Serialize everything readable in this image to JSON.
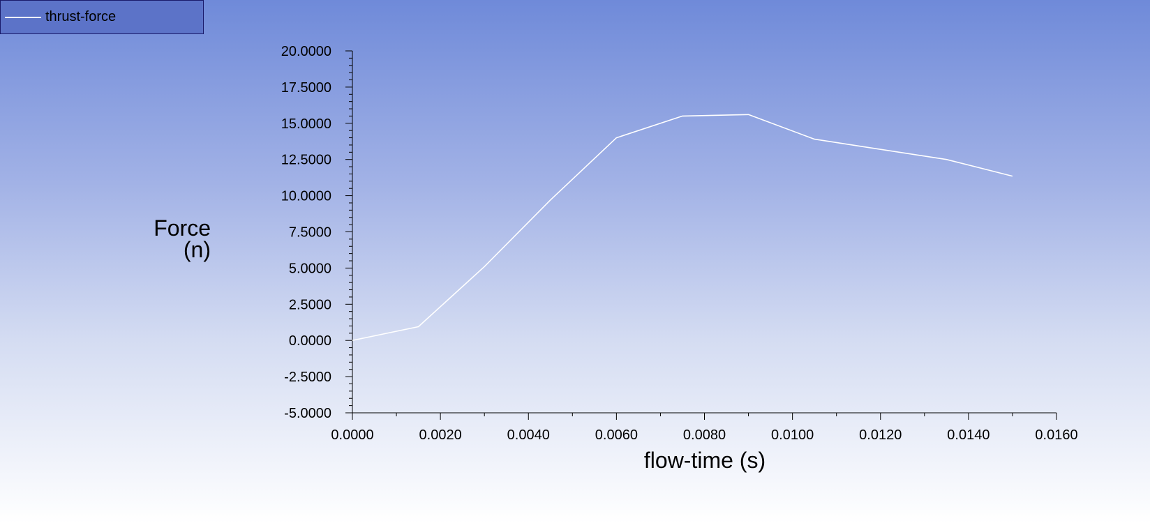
{
  "legend": {
    "label": "thrust-force",
    "swatch_color": "#ffffff"
  },
  "axes": {
    "ylabel_line1": "Force",
    "ylabel_line2": "(n)",
    "xlabel": "flow-time (s)"
  },
  "chart_data": {
    "type": "line",
    "title": "",
    "xlabel": "flow-time (s)",
    "ylabel": "Force (n)",
    "xlim": [
      0,
      0.016
    ],
    "ylim": [
      -5,
      20
    ],
    "xticks": [
      "0.0000",
      "0.0020",
      "0.0040",
      "0.0060",
      "0.0080",
      "0.0100",
      "0.0120",
      "0.0140",
      "0.0160"
    ],
    "yticks": [
      "-5.0000",
      "-2.5000",
      "0.0000",
      "2.5000",
      "5.0000",
      "7.5000",
      "10.0000",
      "12.5000",
      "15.0000",
      "17.5000",
      "20.0000"
    ],
    "legend_position": "top-left",
    "grid": false,
    "series": [
      {
        "name": "thrust-force",
        "color": "#ffffff",
        "x": [
          0.0,
          0.0015,
          0.003,
          0.0045,
          0.006,
          0.0075,
          0.009,
          0.0105,
          0.012,
          0.0135,
          0.015
        ],
        "y": [
          0.0,
          0.95,
          5.1,
          9.7,
          14.0,
          15.5,
          15.6,
          13.9,
          13.2,
          12.5,
          11.35
        ]
      }
    ]
  }
}
